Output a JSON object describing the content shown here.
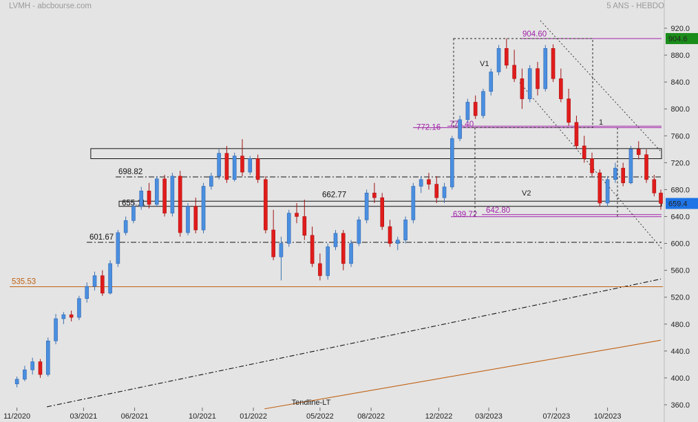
{
  "header": {
    "left": "LVMH - abcbourse.com",
    "right": "5 ANS - HEBDO"
  },
  "chart_data": {
    "type": "candlestick",
    "title": "LVMH - abcbourse.com",
    "period": "5 ANS - HEBDO",
    "ylim": [
      360,
      920
    ],
    "y_ticks": [
      920,
      880,
      840,
      800,
      760,
      720,
      680,
      640,
      600,
      560,
      520,
      480,
      440,
      400,
      360
    ],
    "y_tick_labels": [
      "920.0",
      "880.0",
      "840.0",
      "800.0",
      "760.0",
      "720.0",
      "680.0",
      "640.0",
      "600.0",
      "560.0",
      "520.0",
      "480.0",
      "440.0",
      "400.0",
      "360.0"
    ],
    "x_tick_labels": [
      "11/2020",
      "03/2021",
      "06/2021",
      "10/2021",
      "01/2022",
      "05/2022",
      "08/2022",
      "12/2022",
      "03/2023",
      "07/2023",
      "10/2023"
    ],
    "x_ticks": [
      "2020-11",
      "2021-03",
      "2021-06",
      "2021-10",
      "2022-01",
      "2022-05",
      "2022-08",
      "2022-12",
      "2023-03",
      "2023-07",
      "2023-10"
    ],
    "date_range": [
      "2020-10-30",
      "2024-01-05"
    ],
    "colors": {
      "up": "#4a8fe0",
      "down": "#e01c1c",
      "purple": "#a020a8",
      "orange": "#c06010",
      "last_price_bg": "#1f74e6",
      "max_price_bg": "#1a8c1a"
    },
    "last_price": {
      "label": "659.4",
      "value": 659.4
    },
    "max_price": {
      "label": "904.6",
      "value": 904.6
    },
    "horizontal_levels": [
      {
        "label": "904.60",
        "value": 904.6,
        "color": "purple"
      },
      {
        "label": "772.16",
        "value": 772.16,
        "color": "purple"
      },
      {
        "label": "774.40",
        "value": 774.4,
        "color": "purple"
      },
      {
        "label": "698.82",
        "value": 698.82,
        "color": "black"
      },
      {
        "label": "662.77",
        "value": 662.77,
        "color": "black"
      },
      {
        "label": "655.11",
        "value": 655.11,
        "color": "black"
      },
      {
        "label": "639.72",
        "value": 639.72,
        "color": "purple"
      },
      {
        "label": "642.80",
        "value": 642.8,
        "color": "purple"
      },
      {
        "label": "601.67",
        "value": 601.67,
        "color": "black"
      },
      {
        "label": "535.53",
        "value": 535.53,
        "color": "orange"
      }
    ],
    "zone_box": [
      726,
      741
    ],
    "annotations": [
      "V1",
      "V2",
      "1",
      "Tendline-LT"
    ],
    "trendlines": [
      {
        "name": "Tendline-LT",
        "color": "orange",
        "from": [
          "2022-01-21",
          354
        ],
        "to": [
          "2024-01-05",
          456
        ]
      },
      {
        "name": "",
        "color": "black",
        "style": "dash-dot",
        "from": [
          "2020-12-25",
          357
        ],
        "to": [
          "2024-01-05",
          547
        ]
      }
    ],
    "series": [
      {
        "name": "",
        "ohlc": [
          [
            "2020-11-01",
            391,
            402,
            386,
            398
          ],
          [
            "2020-11-15",
            398,
            418,
            395,
            412
          ],
          [
            "2020-11-29",
            412,
            430,
            405,
            424
          ],
          [
            "2020-12-13",
            424,
            428,
            400,
            405
          ],
          [
            "2020-12-27",
            405,
            460,
            402,
            455
          ],
          [
            "2021-01-10",
            455,
            495,
            450,
            488
          ],
          [
            "2021-01-24",
            488,
            498,
            480,
            494
          ],
          [
            "2021-02-07",
            494,
            500,
            484,
            490
          ],
          [
            "2021-02-21",
            490,
            522,
            486,
            518
          ],
          [
            "2021-03-07",
            518,
            542,
            512,
            536
          ],
          [
            "2021-03-21",
            536,
            558,
            530,
            552
          ],
          [
            "2021-04-04",
            552,
            560,
            522,
            526
          ],
          [
            "2021-04-18",
            526,
            575,
            524,
            570
          ],
          [
            "2021-05-02",
            570,
            620,
            565,
            616
          ],
          [
            "2021-05-16",
            616,
            640,
            612,
            634
          ],
          [
            "2021-05-30",
            634,
            660,
            630,
            655
          ],
          [
            "2021-06-13",
            655,
            684,
            650,
            678
          ],
          [
            "2021-06-27",
            678,
            690,
            652,
            658
          ],
          [
            "2021-07-11",
            658,
            700,
            655,
            696
          ],
          [
            "2021-07-25",
            696,
            702,
            640,
            645
          ],
          [
            "2021-08-08",
            645,
            705,
            640,
            700
          ],
          [
            "2021-08-22",
            700,
            708,
            610,
            616
          ],
          [
            "2021-09-05",
            616,
            660,
            612,
            655
          ],
          [
            "2021-09-19",
            655,
            668,
            615,
            620
          ],
          [
            "2021-10-03",
            620,
            690,
            615,
            685
          ],
          [
            "2021-10-17",
            685,
            705,
            680,
            700
          ],
          [
            "2021-10-31",
            700,
            740,
            695,
            734
          ],
          [
            "2021-11-14",
            734,
            745,
            690,
            695
          ],
          [
            "2021-11-28",
            695,
            735,
            692,
            730
          ],
          [
            "2021-12-12",
            730,
            755,
            700,
            706
          ],
          [
            "2021-12-26",
            706,
            730,
            702,
            726
          ],
          [
            "2022-01-09",
            726,
            732,
            690,
            695
          ],
          [
            "2022-01-23",
            695,
            700,
            615,
            620
          ],
          [
            "2022-02-06",
            620,
            650,
            575,
            580
          ],
          [
            "2022-02-20",
            580,
            610,
            545,
            600
          ],
          [
            "2022-03-06",
            600,
            650,
            595,
            645
          ],
          [
            "2022-03-20",
            645,
            660,
            630,
            640
          ],
          [
            "2022-04-03",
            640,
            665,
            605,
            612
          ],
          [
            "2022-04-17",
            612,
            625,
            565,
            570
          ],
          [
            "2022-05-01",
            570,
            585,
            545,
            552
          ],
          [
            "2022-05-15",
            552,
            600,
            546,
            595
          ],
          [
            "2022-05-29",
            595,
            620,
            590,
            615
          ],
          [
            "2022-06-12",
            615,
            620,
            560,
            570
          ],
          [
            "2022-06-26",
            570,
            605,
            565,
            600
          ],
          [
            "2022-07-10",
            600,
            640,
            596,
            635
          ],
          [
            "2022-07-24",
            635,
            680,
            630,
            675
          ],
          [
            "2022-08-07",
            675,
            690,
            660,
            668
          ],
          [
            "2022-08-21",
            668,
            675,
            620,
            625
          ],
          [
            "2022-09-04",
            625,
            635,
            595,
            600
          ],
          [
            "2022-09-18",
            600,
            610,
            590,
            605
          ],
          [
            "2022-10-02",
            605,
            640,
            600,
            635
          ],
          [
            "2022-10-16",
            635,
            690,
            630,
            685
          ],
          [
            "2022-10-30",
            685,
            700,
            675,
            695
          ],
          [
            "2022-11-13",
            695,
            705,
            680,
            688
          ],
          [
            "2022-11-27",
            688,
            700,
            660,
            668
          ],
          [
            "2022-12-11",
            668,
            690,
            660,
            684
          ],
          [
            "2022-12-25",
            684,
            760,
            680,
            756
          ],
          [
            "2023-01-08",
            756,
            790,
            752,
            784
          ],
          [
            "2023-01-22",
            784,
            815,
            780,
            810
          ],
          [
            "2023-02-05",
            810,
            820,
            785,
            790
          ],
          [
            "2023-02-19",
            790,
            830,
            786,
            826
          ],
          [
            "2023-03-05",
            826,
            860,
            820,
            855
          ],
          [
            "2023-03-19",
            855,
            895,
            850,
            890
          ],
          [
            "2023-04-02",
            890,
            905,
            860,
            865
          ],
          [
            "2023-04-16",
            865,
            888,
            840,
            845
          ],
          [
            "2023-04-30",
            845,
            860,
            800,
            815
          ],
          [
            "2023-05-14",
            815,
            865,
            810,
            860
          ],
          [
            "2023-05-28",
            860,
            870,
            820,
            830
          ],
          [
            "2023-06-11",
            830,
            895,
            826,
            890
          ],
          [
            "2023-06-25",
            890,
            896,
            840,
            845
          ],
          [
            "2023-07-09",
            845,
            860,
            810,
            815
          ],
          [
            "2023-07-23",
            815,
            830,
            775,
            780
          ],
          [
            "2023-08-06",
            780,
            790,
            740,
            745
          ],
          [
            "2023-08-20",
            745,
            760,
            720,
            726
          ],
          [
            "2023-09-03",
            726,
            735,
            700,
            705
          ],
          [
            "2023-09-17",
            705,
            710,
            655,
            660
          ],
          [
            "2023-10-01",
            660,
            700,
            655,
            695
          ],
          [
            "2023-10-15",
            695,
            720,
            690,
            712
          ],
          [
            "2023-10-29",
            712,
            720,
            685,
            690
          ],
          [
            "2023-11-12",
            690,
            745,
            688,
            740
          ],
          [
            "2023-11-26",
            740,
            752,
            725,
            732
          ],
          [
            "2023-12-10",
            732,
            740,
            690,
            695
          ],
          [
            "2023-12-24",
            695,
            702,
            670,
            675
          ],
          [
            "2024-01-05",
            675,
            680,
            650,
            659.4
          ]
        ]
      }
    ]
  }
}
